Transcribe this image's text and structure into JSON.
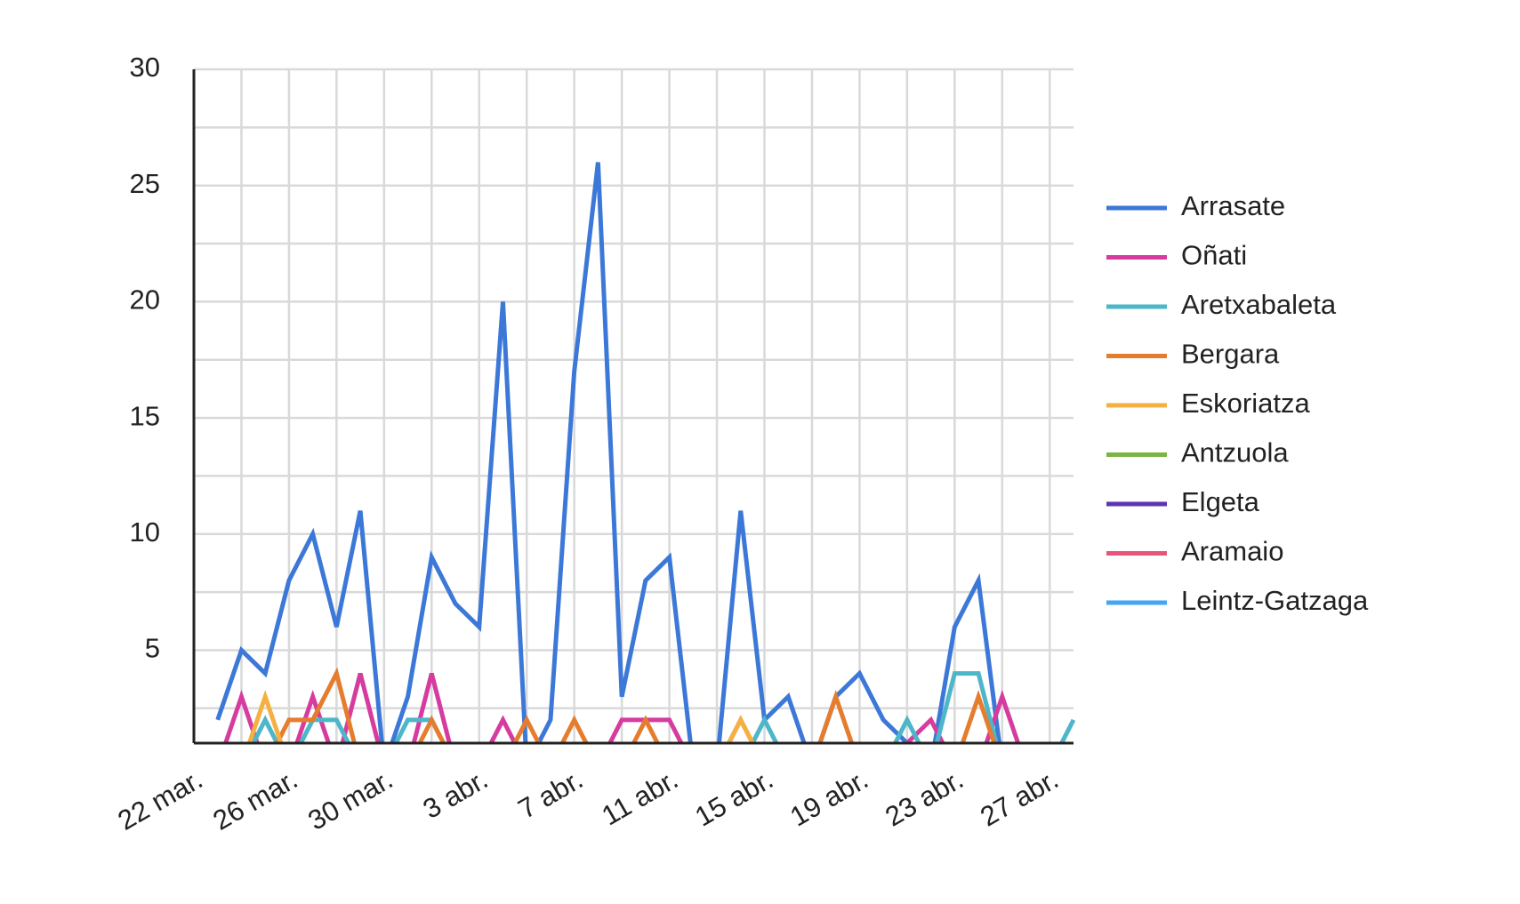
{
  "chart_data": {
    "type": "line",
    "categories": [
      "22 mar.",
      null,
      null,
      null,
      "26 mar.",
      null,
      null,
      null,
      "30 mar.",
      null,
      null,
      null,
      "3 abr.",
      null,
      null,
      null,
      "7 abr.",
      null,
      null,
      null,
      "11 abr.",
      null,
      null,
      null,
      "15 abr.",
      null,
      null,
      null,
      "19 abr.",
      null,
      null,
      null,
      "23 abr.",
      null,
      null,
      null,
      "27 abr.",
      null
    ],
    "series": [
      {
        "name": "Arrasate",
        "color": "#3c78d8",
        "values": [
          null,
          2,
          5,
          4,
          8,
          10,
          6,
          11,
          0,
          3,
          9,
          7,
          6,
          20,
          0,
          2,
          17,
          26,
          3,
          8,
          9,
          0,
          0,
          11,
          2,
          3,
          0,
          3,
          4,
          2,
          1,
          0,
          6,
          8,
          0,
          0,
          0,
          0
        ]
      },
      {
        "name": "Oñati",
        "color": "#d63ca0",
        "values": [
          null,
          0,
          3,
          0,
          0,
          3,
          0,
          4,
          0,
          0,
          4,
          0,
          0,
          2,
          0,
          0,
          0,
          0,
          2,
          2,
          2,
          0,
          0,
          0,
          0,
          0,
          0,
          0,
          0,
          0,
          1,
          2,
          0,
          0,
          3,
          0,
          0,
          0
        ]
      },
      {
        "name": "Aretxabaleta",
        "color": "#4db6c9",
        "values": [
          null,
          0,
          0,
          2,
          0,
          2,
          2,
          0,
          0,
          2,
          2,
          0,
          0,
          0,
          0,
          0,
          0,
          0,
          0,
          0,
          0,
          0,
          0,
          0,
          2,
          0,
          0,
          0,
          0,
          0,
          2,
          0,
          4,
          4,
          0,
          0,
          0,
          2
        ]
      },
      {
        "name": "Bergara",
        "color": "#e67c2e",
        "values": [
          null,
          0,
          0,
          0,
          2,
          2,
          4,
          0,
          0,
          0,
          2,
          0,
          0,
          0,
          2,
          0,
          2,
          0,
          0,
          2,
          0,
          0,
          0,
          2,
          0,
          0,
          0,
          3,
          0,
          0,
          0,
          0,
          0,
          3,
          0,
          0,
          0,
          0
        ]
      },
      {
        "name": "Eskoriatza",
        "color": "#f4b042",
        "values": [
          null,
          0,
          0,
          3,
          0,
          0,
          0,
          0,
          0,
          0,
          0,
          0,
          0,
          0,
          0,
          0,
          0,
          0,
          0,
          0,
          0,
          0,
          0,
          2,
          0,
          0,
          0,
          0,
          0,
          0,
          0,
          0,
          0,
          0,
          0,
          0,
          0,
          0
        ]
      },
      {
        "name": "Antzuola",
        "color": "#7cb342",
        "values": [
          null,
          0,
          0,
          0,
          0,
          0,
          0,
          0,
          0,
          0,
          0,
          0,
          0,
          0,
          0,
          0,
          0,
          0,
          0,
          0,
          0,
          0,
          0,
          0,
          0,
          0,
          0,
          0,
          0,
          0,
          0,
          0,
          0,
          0,
          0,
          0,
          0,
          0
        ]
      },
      {
        "name": "Elgeta",
        "color": "#5e35b1",
        "values": [
          null,
          0,
          0,
          0,
          0,
          0,
          0,
          0,
          0,
          0,
          0,
          0,
          0,
          0,
          0,
          0,
          0,
          0,
          0,
          0,
          0,
          0,
          0,
          0,
          0,
          0,
          0,
          0,
          0,
          0,
          0,
          0,
          0,
          0,
          0,
          0,
          0,
          0
        ]
      },
      {
        "name": "Aramaio",
        "color": "#e8557a",
        "values": [
          null,
          0,
          0,
          0,
          0,
          0,
          0,
          0,
          0,
          0,
          0,
          0,
          0,
          0,
          0,
          0,
          0,
          0,
          0,
          0,
          0,
          0,
          0,
          0,
          0,
          0,
          0,
          0,
          0,
          0,
          0,
          0,
          0,
          0,
          0,
          0,
          0,
          0
        ]
      },
      {
        "name": "Leintz-Gatzaga",
        "color": "#42a5f5",
        "values": [
          null,
          0,
          0,
          0,
          0,
          0,
          0,
          0,
          0,
          0,
          0,
          0,
          0,
          0,
          0,
          0,
          0,
          0,
          0,
          0,
          0,
          0,
          0,
          0,
          0,
          0,
          0,
          0,
          0,
          0,
          0,
          0,
          0,
          0,
          0,
          0,
          0,
          0
        ]
      }
    ],
    "ylim": [
      1,
      30
    ],
    "yticks": [
      5,
      10,
      15,
      20,
      25,
      30
    ],
    "grid": true,
    "legend": "right"
  }
}
